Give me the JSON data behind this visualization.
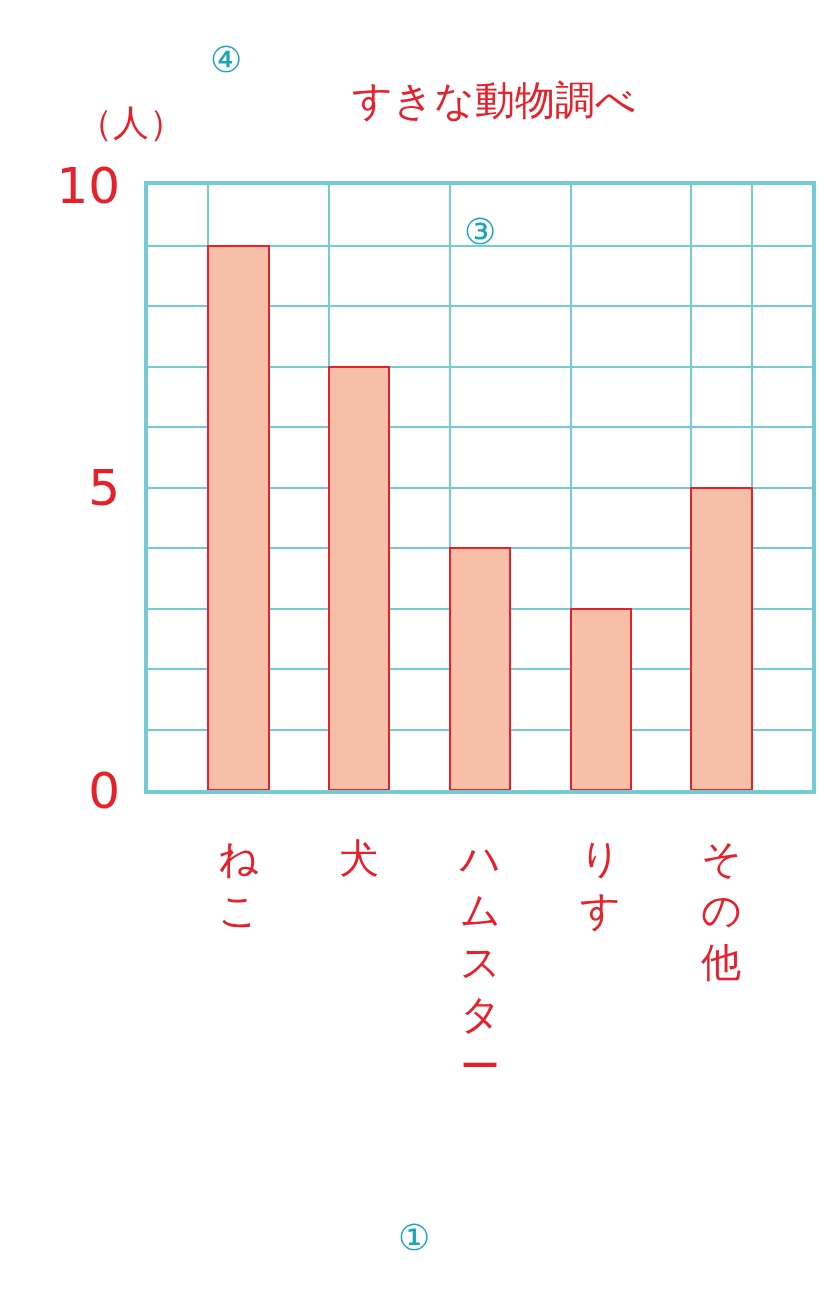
{
  "chart_data": {
    "type": "bar",
    "title": "すきな動物調べ",
    "ylabel": "（人）",
    "categories": [
      null,
      "ねこ",
      null,
      "犬",
      null,
      "ハムスター",
      null,
      "りす",
      null,
      "その他",
      null
    ],
    "values": [
      null,
      9,
      null,
      7,
      null,
      4,
      null,
      3,
      null,
      5,
      null
    ],
    "color": "#f7bfa8",
    "ylim": [
      0,
      10
    ],
    "yticks": [
      0,
      {
        "value": 1,
        "label": null
      },
      {
        "value": 2,
        "label": null
      },
      {
        "value": 3,
        "label": null
      },
      {
        "value": 4,
        "label": null
      },
      5,
      {
        "value": 6,
        "label": null
      },
      {
        "value": 7,
        "label": null
      },
      {
        "value": 8,
        "label": null
      },
      {
        "value": 9,
        "label": null
      },
      10
    ],
    "grid": true,
    "annotations": [
      "④",
      "③",
      "①"
    ]
  }
}
